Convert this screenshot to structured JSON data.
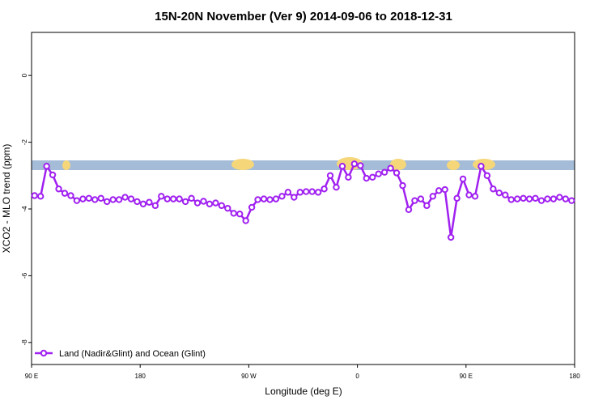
{
  "chart_data": {
    "type": "line",
    "title": "15N-20N November (Ver 9)   2014-09-06 to 2018-12-31",
    "x_label": "Longitude (deg E)",
    "y_label": "XCO2 - MLO trend (ppm)",
    "x": [
      92.5,
      97.5,
      102.5,
      107.5,
      112.5,
      117.5,
      122.5,
      127.5,
      132.5,
      137.5,
      142.5,
      147.5,
      152.5,
      157.5,
      162.5,
      167.5,
      172.5,
      177.5,
      182.5,
      187.5,
      192.5,
      197.5,
      202.5,
      207.5,
      212.5,
      217.5,
      222.5,
      227.5,
      232.5,
      237.5,
      242.5,
      247.5,
      252.5,
      257.5,
      262.5,
      267.5,
      272.5,
      277.5,
      282.5,
      287.5,
      292.5,
      297.5,
      302.5,
      307.5,
      312.5,
      317.5,
      322.5,
      327.5,
      332.5,
      337.5,
      342.5,
      347.5,
      352.5,
      357.5,
      362.5,
      367.5,
      372.5,
      377.5,
      382.5,
      387.5,
      392.5,
      397.5,
      402.5,
      407.5,
      412.5,
      417.5,
      422.5,
      427.5,
      432.5,
      437.5,
      442.5,
      447.5,
      452.5,
      457.5,
      462.5,
      467.5,
      472.5,
      477.5,
      482.5,
      487.5,
      492.5,
      497.5,
      502.5,
      507.5,
      512.5,
      517.5,
      522.5,
      527.5,
      532.5,
      537.5
    ],
    "series": [
      {
        "name": "Land (Nadir&Glint) and Ocean (Glint)",
        "color": "#a020f0",
        "values": [
          -3.6,
          -3.62,
          -2.72,
          -2.98,
          -3.4,
          -3.53,
          -3.6,
          -3.75,
          -3.7,
          -3.68,
          -3.72,
          -3.68,
          -3.78,
          -3.72,
          -3.72,
          -3.65,
          -3.7,
          -3.78,
          -3.85,
          -3.8,
          -3.9,
          -3.62,
          -3.7,
          -3.7,
          -3.7,
          -3.78,
          -3.68,
          -3.82,
          -3.77,
          -3.85,
          -3.82,
          -3.9,
          -3.98,
          -4.13,
          -4.15,
          -4.35,
          -3.95,
          -3.72,
          -3.7,
          -3.72,
          -3.7,
          -3.62,
          -3.5,
          -3.65,
          -3.5,
          -3.48,
          -3.48,
          -3.5,
          -3.4,
          -3.0,
          -3.35,
          -2.72,
          -3.05,
          -2.65,
          -2.7,
          -3.08,
          -3.05,
          -2.95,
          -2.9,
          -2.78,
          -2.92,
          -3.3,
          -4.02,
          -3.75,
          -3.7,
          -3.9,
          -3.62,
          -3.45,
          -3.42,
          -4.85,
          -3.68,
          -3.1,
          -3.58,
          -3.62,
          -2.72,
          -3.0,
          -3.4,
          -3.52,
          -3.58,
          -3.72,
          -3.7,
          -3.68,
          -3.7,
          -3.68,
          -3.75,
          -3.7,
          -3.7,
          -3.65,
          -3.7,
          -3.75
        ]
      }
    ],
    "xlim": [
      90,
      540
    ],
    "xticks": [
      {
        "value": 90,
        "label": "90 E"
      },
      180,
      {
        "value": 270,
        "label": "90 W"
      },
      {
        "value": 360,
        "label": "0"
      },
      {
        "value": 450,
        "label": "90 E"
      },
      {
        "value": 540,
        "label": "180"
      }
    ],
    "ylim": [
      -8.66,
      1.29
    ],
    "yticks": [
      -8,
      -6,
      -4,
      -2,
      0
    ],
    "legend": "bottom-left"
  }
}
